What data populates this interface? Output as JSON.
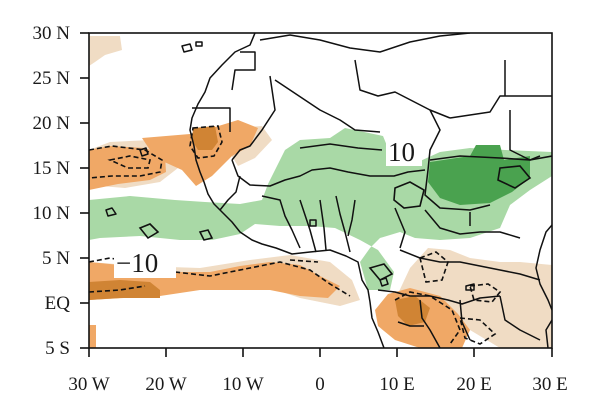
{
  "map": {
    "x_axis": {
      "ticks": [
        "30 W",
        "20 W",
        "10 W",
        "0",
        "10 E",
        "20 E",
        "30 E"
      ]
    },
    "y_axis": {
      "ticks": [
        "30 N",
        "25 N",
        "20 N",
        "15 N",
        "10 N",
        "5 N",
        "EQ",
        "5 S"
      ]
    },
    "contour_labels": {
      "positive": "10",
      "negative": "−10"
    },
    "colors": {
      "positive_light": "#a9d9a6",
      "positive_dark": "#4aa24f",
      "negative_light": "#f0dcc4",
      "negative_mid": "#f0a866",
      "negative_dark": "#d08434",
      "coastline": "#111111",
      "frame": "#111111"
    }
  }
}
